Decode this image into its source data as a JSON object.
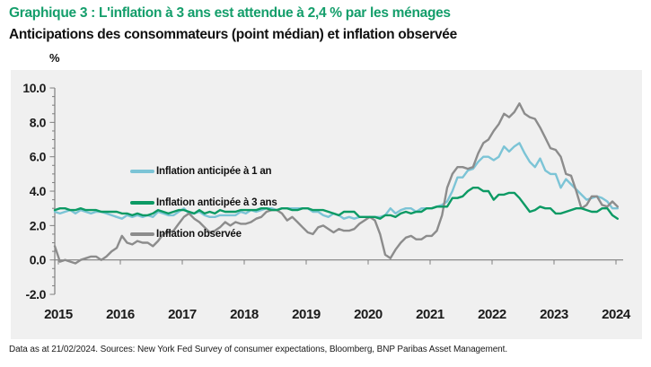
{
  "chart_data": {
    "type": "line",
    "title": "Graphique 3 : L'inflation à 3 ans est attendue à 2,4 % par les ménages",
    "subtitle": "Anticipations des consommateurs (point médian) et inflation observée",
    "ylabel": "%",
    "xlabel": "",
    "ylim": [
      -2.0,
      10.0
    ],
    "xlim": [
      "2014-12",
      "2024-01"
    ],
    "grid": false,
    "legend_position": "top-left-inside",
    "x_months": {
      "start": "2014-12",
      "step_months": 1,
      "count": 110
    },
    "x_ticks": [
      {
        "v": 2015,
        "label": "2015"
      },
      {
        "v": 2016,
        "label": "2016"
      },
      {
        "v": 2017,
        "label": "2017"
      },
      {
        "v": 2018,
        "label": "2018"
      },
      {
        "v": 2019,
        "label": "2019"
      },
      {
        "v": 2020,
        "label": "2020"
      },
      {
        "v": 2021,
        "label": "2021"
      },
      {
        "v": 2022,
        "label": "2022"
      },
      {
        "v": 2023,
        "label": "2023"
      },
      {
        "v": 2024,
        "label": "2024"
      }
    ],
    "y_ticks": [
      {
        "v": 10,
        "label": "10.0"
      },
      {
        "v": 8,
        "label": "8.0"
      },
      {
        "v": 6,
        "label": "6.0"
      },
      {
        "v": 4,
        "label": "4.0"
      },
      {
        "v": 2,
        "label": "2.0"
      },
      {
        "v": 0,
        "label": "0.0"
      },
      {
        "v": -2,
        "label": "-2.0"
      }
    ],
    "series": [
      {
        "name": "Inflation anticipée à 1 an",
        "color": "#7cc4d6",
        "values": [
          2.8,
          2.7,
          2.8,
          2.9,
          2.7,
          2.9,
          2.8,
          2.7,
          2.8,
          2.8,
          2.7,
          2.6,
          2.5,
          2.4,
          2.6,
          2.5,
          2.6,
          2.5,
          2.6,
          2.5,
          2.8,
          2.7,
          2.6,
          2.6,
          2.8,
          3.0,
          2.7,
          2.7,
          2.8,
          2.6,
          2.5,
          2.5,
          2.6,
          2.6,
          2.6,
          2.6,
          2.8,
          2.7,
          2.9,
          2.8,
          2.9,
          3.0,
          3.0,
          2.9,
          3.0,
          3.0,
          3.0,
          3.0,
          3.0,
          3.0,
          2.8,
          2.8,
          2.6,
          2.5,
          2.7,
          2.6,
          2.4,
          2.5,
          2.4,
          2.5,
          2.5,
          2.5,
          2.5,
          2.5,
          2.6,
          3.0,
          2.7,
          2.9,
          3.0,
          3.0,
          2.8,
          3.0,
          3.0,
          3.0,
          3.1,
          3.2,
          3.4,
          4.0,
          4.8,
          4.8,
          5.2,
          5.3,
          5.7,
          6.0,
          6.0,
          5.8,
          6.0,
          6.6,
          6.3,
          6.6,
          6.8,
          6.2,
          5.7,
          5.4,
          5.9,
          5.2,
          5.0,
          5.0,
          4.2,
          4.7,
          4.4,
          4.1,
          3.8,
          3.5,
          3.6,
          3.7,
          3.6,
          3.4,
          3.0,
          3.0
        ]
      },
      {
        "name": "Inflation anticipée à 3 ans",
        "color": "#0c9a64",
        "values": [
          2.9,
          3.0,
          3.0,
          2.9,
          2.9,
          3.0,
          2.9,
          2.9,
          2.9,
          2.8,
          2.8,
          2.8,
          2.8,
          2.7,
          2.7,
          2.6,
          2.7,
          2.6,
          2.6,
          2.7,
          2.9,
          2.8,
          2.7,
          2.8,
          2.9,
          2.9,
          2.8,
          2.7,
          2.9,
          2.7,
          2.8,
          2.7,
          2.9,
          2.8,
          2.8,
          2.8,
          2.9,
          2.9,
          2.9,
          2.9,
          3.0,
          3.0,
          2.9,
          2.9,
          3.0,
          3.0,
          2.9,
          2.9,
          3.0,
          3.0,
          2.9,
          2.9,
          2.9,
          2.8,
          2.7,
          2.6,
          2.8,
          2.8,
          2.8,
          2.5,
          2.5,
          2.5,
          2.5,
          2.4,
          2.6,
          2.6,
          2.5,
          2.7,
          2.8,
          2.7,
          2.8,
          2.8,
          3.0,
          3.0,
          3.1,
          3.1,
          3.1,
          3.6,
          3.6,
          3.7,
          4.0,
          4.2,
          4.2,
          4.0,
          4.0,
          3.5,
          3.8,
          3.8,
          3.9,
          3.9,
          3.6,
          3.2,
          2.8,
          2.9,
          3.1,
          3.0,
          3.0,
          2.7,
          2.7,
          2.8,
          2.9,
          3.0,
          3.0,
          2.9,
          2.8,
          2.8,
          3.0,
          3.0,
          2.6,
          2.4
        ]
      },
      {
        "name": "Inflation observée",
        "color": "#8c8c8c",
        "values": [
          0.8,
          -0.1,
          0.0,
          -0.1,
          -0.2,
          0.0,
          0.1,
          0.2,
          0.2,
          0.0,
          0.2,
          0.5,
          0.7,
          1.4,
          1.0,
          0.9,
          1.1,
          1.0,
          1.0,
          0.8,
          1.1,
          1.5,
          1.6,
          1.7,
          2.1,
          2.5,
          2.7,
          2.4,
          2.2,
          1.9,
          1.6,
          1.7,
          1.9,
          2.2,
          2.0,
          2.2,
          2.1,
          2.1,
          2.2,
          2.4,
          2.5,
          2.8,
          2.9,
          2.9,
          2.7,
          2.3,
          2.5,
          2.2,
          1.9,
          1.6,
          1.5,
          1.9,
          2.0,
          1.8,
          1.6,
          1.8,
          1.7,
          1.7,
          1.8,
          2.1,
          2.3,
          2.5,
          2.3,
          1.5,
          0.3,
          0.1,
          0.6,
          1.0,
          1.3,
          1.4,
          1.2,
          1.2,
          1.4,
          1.4,
          1.7,
          2.6,
          4.2,
          5.0,
          5.4,
          5.4,
          5.3,
          5.4,
          6.2,
          6.8,
          7.0,
          7.5,
          7.9,
          8.5,
          8.3,
          8.6,
          9.1,
          8.5,
          8.3,
          8.2,
          7.7,
          7.1,
          6.5,
          6.4,
          6.0,
          5.0,
          4.9,
          4.0,
          3.0,
          3.2,
          3.7,
          3.7,
          3.2,
          3.1,
          3.4,
          3.1
        ]
      }
    ]
  },
  "footer": {
    "text": "Data as at 21/02/2024. Sources: New York Fed Survey of consumer expectations, Bloomberg, BNP Paribas Asset Management."
  },
  "colors": {
    "title_green": "#149e6b",
    "text_dark": "#111111",
    "panel_bg": "#f0f0f0",
    "axis_gray": "#7f7f7f"
  }
}
